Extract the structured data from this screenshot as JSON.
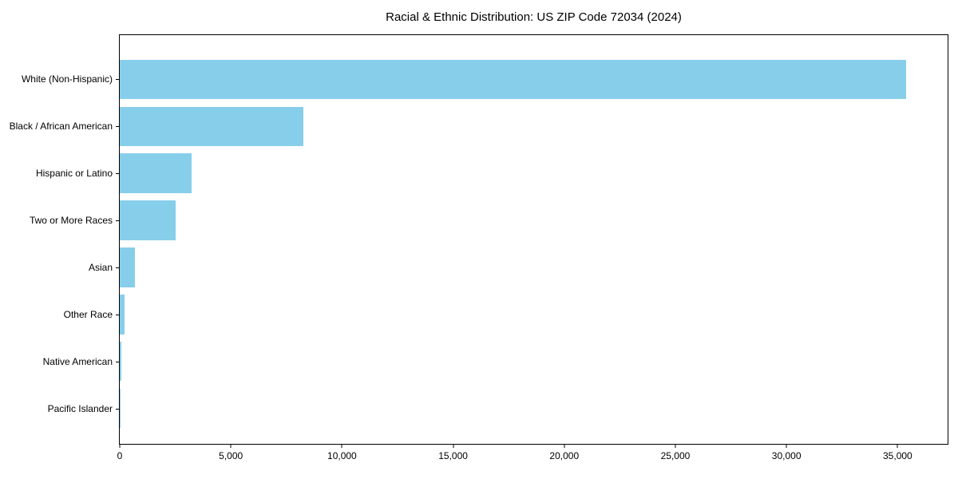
{
  "title": "Racial & Ethnic Distribution: US ZIP Code 72034 (2024)",
  "colors": {
    "bar": "#87CEEB",
    "axis": "#000000",
    "text": "#000000",
    "background": "#FFFFFF"
  },
  "chart_data": {
    "type": "bar",
    "orientation": "horizontal",
    "title": "Racial & Ethnic Distribution: US ZIP Code 72034 (2024)",
    "xlabel": "",
    "ylabel": "",
    "categories": [
      "White (Non-Hispanic)",
      "Black / African American",
      "Hispanic or Latino",
      "Two or More Races",
      "Asian",
      "Other Race",
      "Native American",
      "Pacific Islander"
    ],
    "values": [
      35400,
      8250,
      3220,
      2520,
      690,
      200,
      60,
      15
    ],
    "xlim": [
      0,
      37250
    ],
    "x_ticks": [
      0,
      5000,
      10000,
      15000,
      20000,
      25000,
      30000,
      35000
    ],
    "x_tick_labels": [
      "0",
      "5,000",
      "10,000",
      "15,000",
      "20,000",
      "25,000",
      "30,000",
      "35,000"
    ],
    "grid": false,
    "legend": "none",
    "bar_color": "#87CEEB"
  }
}
